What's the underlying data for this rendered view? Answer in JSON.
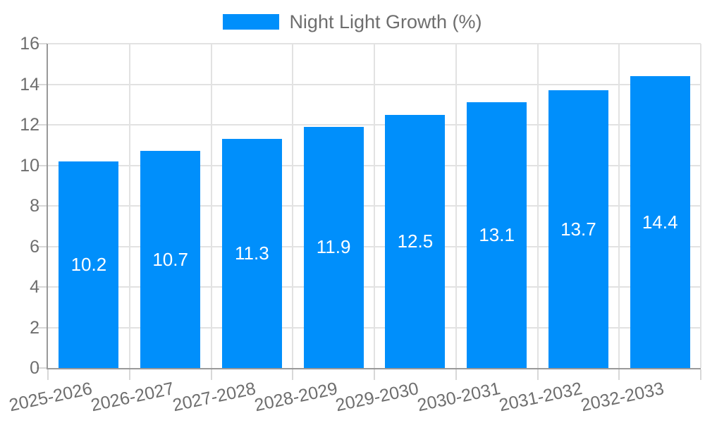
{
  "legend": {
    "label": "Night Light Growth (%)"
  },
  "chart_data": {
    "type": "bar",
    "title": "",
    "categories": [
      "2025-2026",
      "2026-2027",
      "2027-2028",
      "2028-2029",
      "2029-2030",
      "2030-2031",
      "2031-2032",
      "2032-2033"
    ],
    "series": [
      {
        "name": "Night Light Growth (%)",
        "values": [
          10.2,
          10.7,
          11.3,
          11.9,
          12.5,
          13.1,
          13.7,
          14.4
        ]
      }
    ],
    "bar_labels": [
      "10.2",
      "10.7",
      "11.3",
      "11.9",
      "12.5",
      "13.1",
      "13.7",
      "14.4"
    ],
    "xlabel": "",
    "ylabel": "",
    "ylim": [
      0,
      16
    ],
    "yticks": [
      0,
      2,
      4,
      6,
      8,
      10,
      12,
      14,
      16
    ],
    "grid": true,
    "legend_position": "top",
    "x_label_rotation_deg": -12
  },
  "colors": {
    "bar": "#008FFB",
    "grid": "#e2e2e2",
    "axis_line": "#999999",
    "tick_mark": "#d8d8d8",
    "tick_label": "#6e6e6e",
    "legend_label": "#6e6e6e",
    "value_label": "#ffffff",
    "background": "#ffffff"
  }
}
